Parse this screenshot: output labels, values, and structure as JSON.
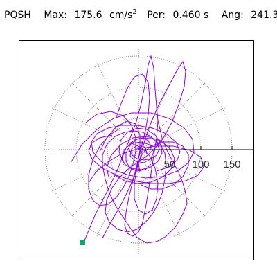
{
  "header": {
    "station": "PQSH",
    "max_label": "Max:",
    "max_value": "175.6",
    "units": "cm/s",
    "units_exp": "2",
    "per_label": "Per:",
    "per_value": "0.460 s",
    "ang_label": "Ang:",
    "ang_value": "241.3"
  },
  "axis": {
    "ticks": [
      "50",
      "100",
      "150"
    ]
  },
  "colors": {
    "trace": "#8a00d6",
    "grid": "#808080",
    "marker": "#00a86b"
  }
}
